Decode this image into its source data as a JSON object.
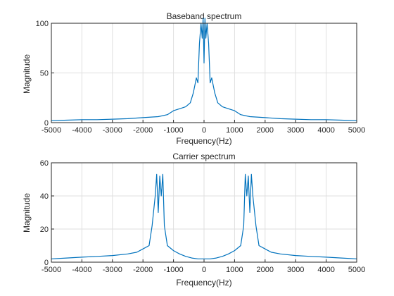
{
  "chart_data": [
    {
      "type": "line",
      "title": "Baseband spectrum",
      "xlabel": "Frequency(Hz)",
      "ylabel": "Magnitude",
      "xlim": [
        -5000,
        5000
      ],
      "ylim": [
        0,
        100
      ],
      "grid": true,
      "xticks": [
        "-5000",
        "-4000",
        "-3000",
        "-2000",
        "-1000",
        "0",
        "1000",
        "2000",
        "3000",
        "4000",
        "5000"
      ],
      "yticks": [
        "0",
        "50",
        "100"
      ],
      "series": [
        {
          "color": "#0072BD",
          "x": [
            -5000,
            -4500,
            -4000,
            -3500,
            -3000,
            -2500,
            -2000,
            -1500,
            -1200,
            -1000,
            -800,
            -600,
            -450,
            -350,
            -250,
            -200,
            -150,
            -100,
            -60,
            -30,
            0,
            30,
            60,
            100,
            150,
            200,
            250,
            350,
            450,
            600,
            800,
            1000,
            1200,
            1500,
            2000,
            2500,
            3000,
            3500,
            4000,
            4500,
            5000
          ],
          "values": [
            2,
            2.5,
            3,
            3,
            3.5,
            4,
            5,
            6,
            8,
            12,
            14,
            16,
            20,
            30,
            45,
            40,
            80,
            100,
            85,
            105,
            60,
            105,
            85,
            100,
            80,
            40,
            45,
            30,
            20,
            16,
            14,
            12,
            8,
            6,
            5,
            4,
            3.5,
            3,
            3,
            2.5,
            2
          ]
        }
      ]
    },
    {
      "type": "line",
      "title": "Carrier spectrum",
      "xlabel": "Frequency(Hz)",
      "ylabel": "Magnitude",
      "xlim": [
        -5000,
        5000
      ],
      "ylim": [
        0,
        60
      ],
      "grid": true,
      "xticks": [
        "-5000",
        "-4000",
        "-3000",
        "-2000",
        "-1000",
        "0",
        "1000",
        "2000",
        "3000",
        "4000",
        "5000"
      ],
      "yticks": [
        "0",
        "20",
        "40",
        "60"
      ],
      "series": [
        {
          "color": "#0072BD",
          "x": [
            -5000,
            -4500,
            -4000,
            -3500,
            -3000,
            -2500,
            -2200,
            -2000,
            -1800,
            -1700,
            -1600,
            -1550,
            -1500,
            -1450,
            -1400,
            -1350,
            -1300,
            -1200,
            -1000,
            -800,
            -600,
            -400,
            -200,
            0,
            200,
            400,
            600,
            800,
            1000,
            1200,
            1300,
            1350,
            1400,
            1450,
            1500,
            1550,
            1600,
            1700,
            1800,
            2000,
            2200,
            2500,
            3000,
            3500,
            4000,
            4500,
            5000
          ],
          "values": [
            2,
            2.5,
            3,
            3.5,
            4,
            5,
            6,
            8,
            10,
            22,
            40,
            53,
            30,
            52,
            40,
            53,
            22,
            10,
            7,
            5,
            3.5,
            2.5,
            2,
            2,
            2,
            2.5,
            3.5,
            5,
            7,
            10,
            22,
            53,
            40,
            52,
            30,
            53,
            40,
            22,
            10,
            8,
            6,
            5,
            4,
            3.5,
            3,
            2.5,
            2
          ]
        }
      ]
    }
  ]
}
